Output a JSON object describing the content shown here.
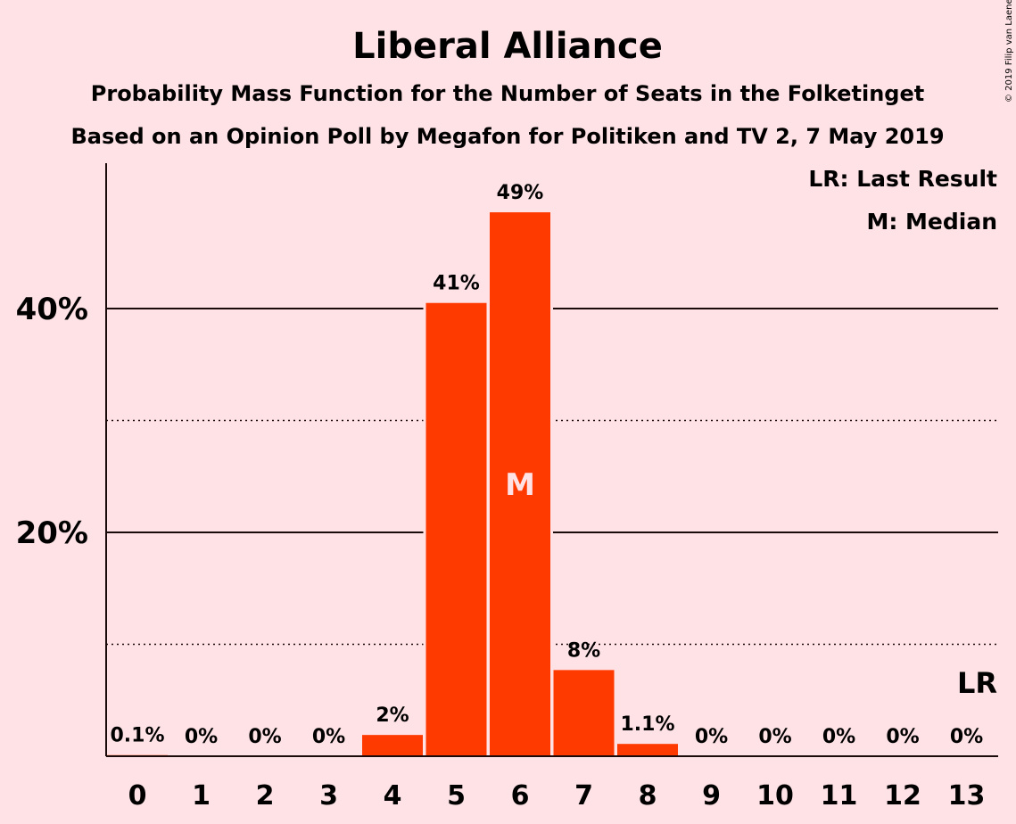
{
  "chart_data": {
    "type": "bar",
    "title": "Liberal Alliance",
    "subtitle": "Probability Mass Function for the Number of Seats in the Folketinget",
    "subtitle2": "Based on an Opinion Poll by Megafon for Politiken and TV 2, 7 May 2019",
    "copyright": "© 2019 Filip van Laenen",
    "categories": [
      "0",
      "1",
      "2",
      "3",
      "4",
      "5",
      "6",
      "7",
      "8",
      "9",
      "10",
      "11",
      "12",
      "13"
    ],
    "values": [
      0.1,
      0,
      0,
      0,
      1.9,
      40.5,
      48.6,
      7.7,
      1.1,
      0,
      0,
      0,
      0,
      0
    ],
    "value_labels": [
      "0.1%",
      "0%",
      "0%",
      "0%",
      "2%",
      "41%",
      "49%",
      "8%",
      "1.1%",
      "0%",
      "0%",
      "0%",
      "0%",
      "0%"
    ],
    "ylim": [
      0,
      53
    ],
    "yticks": [
      {
        "value": 20,
        "label": "20%"
      },
      {
        "value": 40,
        "label": "40%"
      }
    ],
    "minor_gridlines": [
      10,
      30
    ],
    "median_index": 6,
    "median_mark": "M",
    "last_result_index": 13,
    "last_result_mark": "LR",
    "legend": [
      "LR: Last Result",
      "M: Median"
    ],
    "legend_position": "top-right",
    "bar_color": "#FF3A00",
    "background_color": "#FFE2E6"
  }
}
